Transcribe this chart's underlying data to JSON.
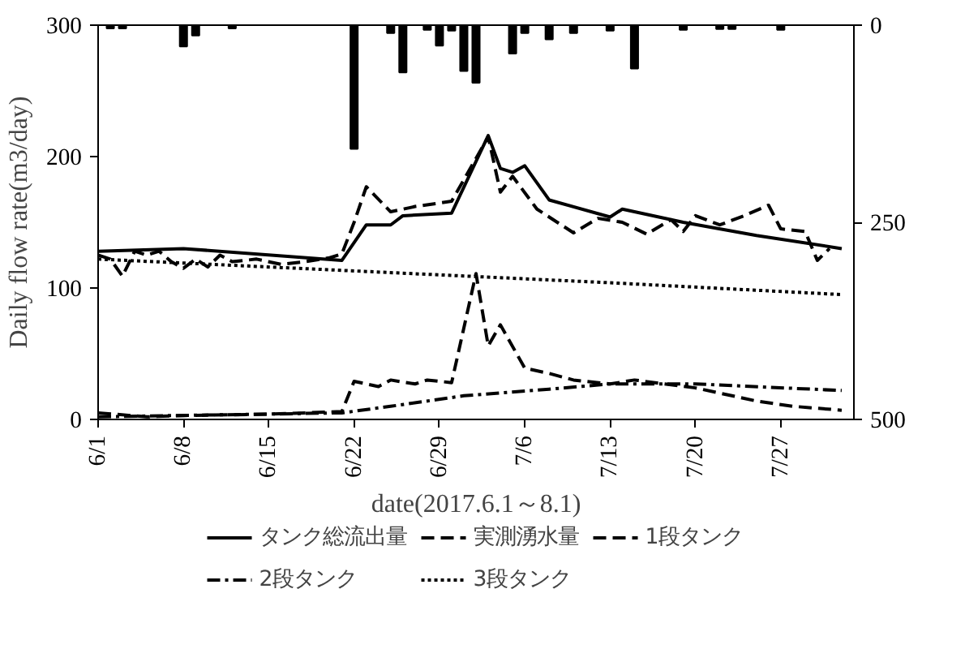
{
  "chart_data": {
    "type": "line",
    "xlabel": "date(2017.6.1～8.1)",
    "ylabel": "Daily flow rate(m3/day)",
    "xlim": [
      "2017-06-01",
      "2017-08-02"
    ],
    "xticks": [
      {
        "value": "2017-06-01",
        "label": "6/1"
      },
      {
        "value": "2017-06-08",
        "label": "6/8"
      },
      {
        "value": "2017-06-15",
        "label": "6/15"
      },
      {
        "value": "2017-06-22",
        "label": "6/22"
      },
      {
        "value": "2017-06-29",
        "label": "6/29"
      },
      {
        "value": "2017-07-06",
        "label": "7/6"
      },
      {
        "value": "2017-07-13",
        "label": "7/13"
      },
      {
        "value": "2017-07-20",
        "label": "7/20"
      },
      {
        "value": "2017-07-27",
        "label": "7/27"
      }
    ],
    "ylim": [
      0,
      300
    ],
    "yticks": [
      0,
      100,
      200,
      300
    ],
    "y2lim": [
      500,
      0
    ],
    "y2ticks": [
      0,
      250,
      500
    ],
    "grid": false,
    "legend": "bottom",
    "marker": "none",
    "series": [
      {
        "type": "bar",
        "axis": "y2",
        "color": "#000000",
        "x": [
          "2017-06-02",
          "2017-06-03",
          "2017-06-08",
          "2017-06-09",
          "2017-06-12",
          "2017-06-22",
          "2017-06-25",
          "2017-06-26",
          "2017-06-28",
          "2017-06-29",
          "2017-06-30",
          "2017-07-01",
          "2017-07-02",
          "2017-07-05",
          "2017-07-06",
          "2017-07-08",
          "2017-07-10",
          "2017-07-13",
          "2017-07-15",
          "2017-07-19",
          "2017-07-22",
          "2017-07-23",
          "2017-07-27"
        ],
        "values": [
          4,
          4,
          27,
          13,
          4,
          157,
          10,
          60,
          6,
          26,
          7,
          58,
          73,
          36,
          10,
          18,
          10,
          7,
          55,
          6,
          5,
          5,
          6
        ]
      },
      {
        "name": "タンク総流出量",
        "color": "#000000",
        "line_style": "solid",
        "x": [
          "2017-06-01",
          "2017-06-08",
          "2017-06-21",
          "2017-06-23",
          "2017-06-25",
          "2017-06-26",
          "2017-06-30",
          "2017-07-03",
          "2017-07-04",
          "2017-07-05",
          "2017-07-06",
          "2017-07-08",
          "2017-07-13",
          "2017-07-14",
          "2017-07-19",
          "2017-07-25",
          "2017-08-01"
        ],
        "values": [
          128,
          130,
          121,
          148,
          148,
          155,
          157,
          216,
          191,
          188,
          193,
          167,
          154,
          160,
          150,
          140,
          130
        ]
      },
      {
        "name": "実測湧水量",
        "color": "#000000",
        "line_style": "dashed",
        "x": [
          "2017-06-01",
          "2017-06-02",
          "2017-06-03",
          "2017-06-04",
          "2017-06-05",
          "2017-06-06",
          "2017-06-07",
          "2017-06-08",
          "2017-06-09",
          "2017-06-10",
          "2017-06-11",
          "2017-06-12",
          "2017-06-14",
          "2017-06-16",
          "2017-06-18",
          "2017-06-20",
          "2017-06-21",
          "2017-06-22",
          "2017-06-23",
          "2017-06-25",
          "2017-06-27",
          "2017-06-30",
          "2017-07-03",
          "2017-07-04",
          "2017-07-05",
          "2017-07-07",
          "2017-07-10",
          "2017-07-12",
          "2017-07-14",
          "2017-07-16",
          "2017-07-18",
          "2017-07-19",
          "2017-07-20",
          "2017-07-22",
          "2017-07-24",
          "2017-07-26",
          "2017-07-27",
          "2017-07-29",
          "2017-07-30",
          "2017-07-31"
        ],
        "values": [
          125,
          122,
          109,
          128,
          125,
          128,
          120,
          115,
          122,
          116,
          125,
          120,
          122,
          118,
          120,
          123,
          126,
          150,
          177,
          158,
          162,
          166,
          215,
          173,
          185,
          160,
          142,
          153,
          150,
          141,
          152,
          143,
          155,
          148,
          155,
          163,
          145,
          143,
          121,
          130
        ]
      },
      {
        "name": "1段タンク",
        "color": "#000000",
        "line_style": "dashed",
        "x": [
          "2017-06-01",
          "2017-06-05",
          "2017-06-08",
          "2017-06-15",
          "2017-06-21",
          "2017-06-22",
          "2017-06-24",
          "2017-06-25",
          "2017-06-27",
          "2017-06-28",
          "2017-06-30",
          "2017-07-02",
          "2017-07-03",
          "2017-07-04",
          "2017-07-06",
          "2017-07-08",
          "2017-07-10",
          "2017-07-13",
          "2017-07-15",
          "2017-07-20",
          "2017-07-25",
          "2017-07-28",
          "2017-08-01"
        ],
        "values": [
          5,
          2,
          3,
          4,
          6,
          29,
          25,
          30,
          27,
          30,
          28,
          111,
          56,
          72,
          39,
          35,
          30,
          27,
          30,
          24,
          14,
          10,
          7
        ]
      },
      {
        "name": "2段タンク",
        "color": "#000000",
        "line_style": "dashdot",
        "x": [
          "2017-06-01",
          "2017-06-21",
          "2017-06-25",
          "2017-07-01",
          "2017-07-08",
          "2017-07-13",
          "2017-07-20",
          "2017-08-01"
        ],
        "values": [
          2,
          5,
          10,
          18,
          23,
          27,
          27,
          22
        ]
      },
      {
        "name": "3段タンク",
        "color": "#000000",
        "line_style": "dotted",
        "x": [
          "2017-06-01",
          "2017-06-22",
          "2017-07-13",
          "2017-08-01"
        ],
        "values": [
          122,
          113,
          104,
          95
        ]
      }
    ]
  }
}
